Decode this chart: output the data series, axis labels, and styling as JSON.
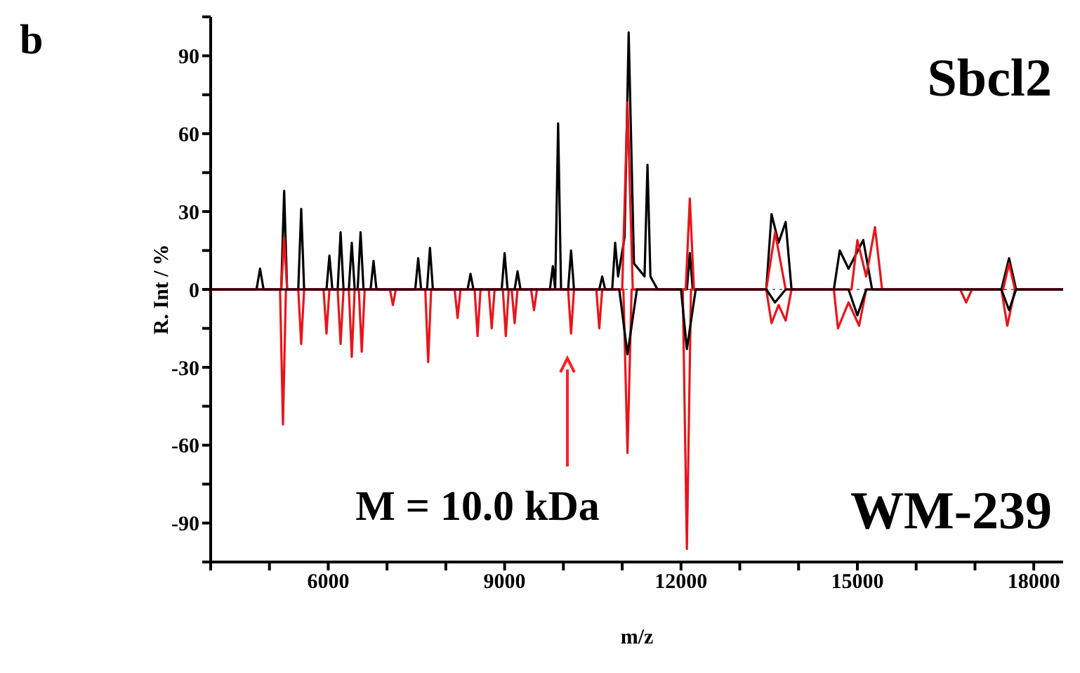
{
  "chart_data": {
    "type": "line",
    "xlabel": "m/z",
    "ylabel": "R. Int / %",
    "annotations": [
      "b",
      "M = 10.0 kDa"
    ],
    "xlim": [
      4000,
      18500
    ],
    "xticks": [
      {
        "value": 4000,
        "label": null
      },
      {
        "value": 5000,
        "label": null
      },
      6000,
      {
        "value": 7000,
        "label": null
      },
      {
        "value": 8000,
        "label": null
      },
      9000,
      {
        "value": 10000,
        "label": null
      },
      {
        "value": 11000,
        "label": null
      },
      12000,
      {
        "value": 13000,
        "label": null
      },
      {
        "value": 14000,
        "label": null
      },
      15000,
      {
        "value": 16000,
        "label": null
      },
      {
        "value": 17000,
        "label": null
      },
      18000
    ],
    "ylim": [
      -105,
      105
    ],
    "yticks": [
      {
        "value": -105,
        "label": null
      },
      -90,
      {
        "value": -75,
        "label": null
      },
      -60,
      {
        "value": -45,
        "label": null
      },
      -30,
      {
        "value": -15,
        "label": null
      },
      0,
      {
        "value": 15,
        "label": null
      },
      30,
      {
        "value": 45,
        "label": null
      },
      60,
      {
        "value": 75,
        "label": null
      },
      90,
      {
        "value": 105,
        "label": null
      }
    ],
    "ref_lines": [
      {
        "axis": "y",
        "value": 0,
        "color": "#808080",
        "line_style": "dotted"
      }
    ],
    "series": [
      {
        "name": "Sbcl2",
        "color": "#000000",
        "x": [
          4000,
          4780,
          4840,
          4900,
          5200,
          5250,
          5300,
          5490,
          5540,
          5590,
          5970,
          6020,
          6070,
          6160,
          6210,
          6260,
          6350,
          6400,
          6450,
          6500,
          6550,
          6600,
          6720,
          6770,
          6820,
          7480,
          7530,
          7580,
          7680,
          7730,
          7780,
          8370,
          8420,
          8470,
          8950,
          9000,
          9050,
          9170,
          9220,
          9270,
          9770,
          9820,
          9860,
          9910,
          9960,
          10080,
          10130,
          10180,
          10610,
          10660,
          10710,
          10830,
          10880,
          10930,
          11040,
          11110,
          11200,
          11380,
          11430,
          11480,
          11600,
          12100,
          12150,
          12200,
          13450,
          13540,
          13660,
          13780,
          13880,
          14600,
          14700,
          14850,
          15100,
          15250,
          17450,
          17580,
          17700,
          18500
        ],
        "values": [
          0,
          0,
          8,
          0,
          0,
          38,
          0,
          0,
          31,
          0,
          0,
          13,
          0,
          0,
          22,
          0,
          0,
          18,
          0,
          0,
          22,
          0,
          0,
          11,
          0,
          0,
          12,
          0,
          0,
          16,
          0,
          0,
          6,
          0,
          0,
          14,
          0,
          0,
          7,
          0,
          0,
          9,
          0,
          64,
          0,
          0,
          15,
          0,
          0,
          5,
          0,
          0,
          18,
          5,
          20,
          99,
          10,
          5,
          48,
          5,
          0,
          0,
          14,
          0,
          0,
          29,
          18,
          26,
          0,
          0,
          15,
          8,
          19,
          0,
          0,
          12,
          0,
          0
        ]
      },
      {
        "color": "#e8151b",
        "x": [
          4000,
          5200,
          5250,
          5300,
          11000,
          11090,
          11180,
          12080,
          12150,
          12220,
          13450,
          13600,
          13780,
          14900,
          15000,
          15150,
          15300,
          15420,
          17480,
          17580,
          17680,
          18500
        ],
        "values": [
          0,
          0,
          20,
          0,
          0,
          72,
          0,
          0,
          35,
          0,
          0,
          22,
          0,
          0,
          19,
          5,
          24,
          0,
          0,
          10,
          0,
          0
        ]
      },
      {
        "name": "WM-239",
        "color": "#e8151b",
        "x": [
          4000,
          5180,
          5230,
          5280,
          5490,
          5540,
          5590,
          5920,
          5970,
          6020,
          6160,
          6210,
          6260,
          6350,
          6400,
          6450,
          6520,
          6570,
          6620,
          7050,
          7100,
          7150,
          7650,
          7700,
          7750,
          8150,
          8200,
          8250,
          8490,
          8540,
          8590,
          8730,
          8780,
          8830,
          8970,
          9020,
          9070,
          9120,
          9170,
          9220,
          9450,
          9500,
          9550,
          10080,
          10130,
          10180,
          10560,
          10610,
          10660,
          11020,
          11090,
          11160,
          12030,
          12100,
          12170,
          13450,
          13540,
          13660,
          13780,
          13880,
          14600,
          14670,
          14850,
          15030,
          15150,
          16750,
          16850,
          16950,
          17450,
          17550,
          17680,
          18500
        ],
        "values": [
          0,
          0,
          -52,
          0,
          0,
          -21,
          0,
          0,
          -17,
          0,
          0,
          -21,
          0,
          0,
          -26,
          0,
          0,
          -24,
          0,
          0,
          -6,
          0,
          0,
          -28,
          0,
          0,
          -11,
          0,
          0,
          -18,
          0,
          0,
          -15,
          0,
          0,
          -18,
          0,
          0,
          -13,
          0,
          0,
          -8,
          0,
          0,
          -17,
          0,
          0,
          -15,
          0,
          0,
          -63,
          0,
          0,
          -100,
          0,
          0,
          -13,
          -6,
          -12,
          0,
          0,
          -15,
          -5,
          -14,
          0,
          0,
          -5,
          0,
          0,
          -14,
          0,
          0
        ]
      },
      {
        "color": "#000000",
        "x": [
          4000,
          10950,
          11090,
          11250,
          12000,
          12100,
          12250,
          13450,
          13600,
          13780,
          14850,
          15000,
          15150,
          17450,
          17580,
          17700,
          18500
        ],
        "values": [
          0,
          0,
          -25,
          0,
          0,
          -23,
          0,
          0,
          -5,
          0,
          0,
          -10,
          0,
          0,
          -8,
          0,
          0
        ]
      }
    ]
  }
}
